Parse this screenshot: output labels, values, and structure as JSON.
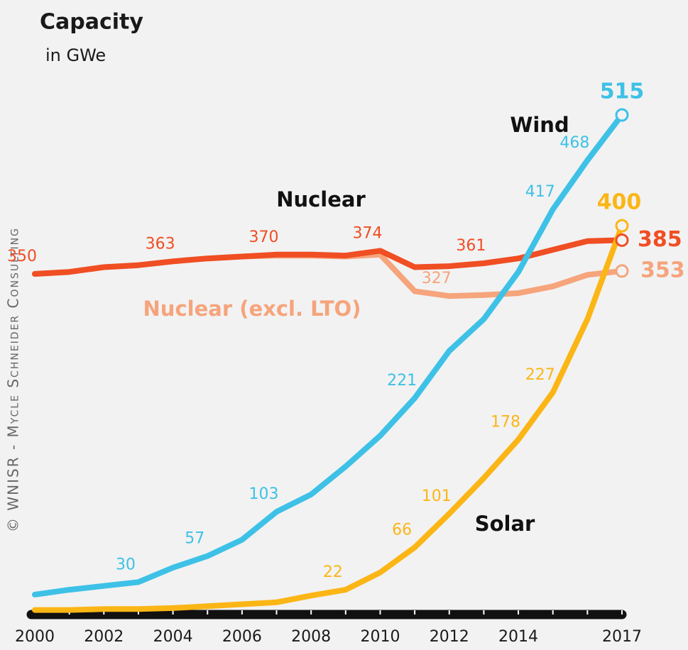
{
  "chart_data": {
    "type": "line",
    "title": "Capacity",
    "subtitle": "in GWe",
    "credit": "© WNISR - Mycle Schneider Consulting",
    "x": [
      2000,
      2001,
      2002,
      2003,
      2004,
      2005,
      2006,
      2007,
      2008,
      2009,
      2010,
      2011,
      2012,
      2013,
      2014,
      2015,
      2016,
      2017
    ],
    "xlim": [
      2000,
      2017
    ],
    "xticks": [
      2000,
      2002,
      2004,
      2006,
      2008,
      2010,
      2012,
      2014,
      2017
    ],
    "ylim": [
      0,
      515
    ],
    "grid": false,
    "series": [
      {
        "name": "Wind",
        "color": "#3ec1e6",
        "values": [
          17,
          22,
          26,
          30,
          45,
          57,
          74,
          103,
          121,
          150,
          182,
          221,
          270,
          303,
          352,
          417,
          468,
          515
        ],
        "value_labels": [
          null,
          null,
          null,
          "30",
          null,
          "57",
          null,
          "103",
          null,
          null,
          null,
          "221",
          null,
          null,
          null,
          "417",
          "468",
          "515"
        ]
      },
      {
        "name": "Nuclear",
        "color": "#f04e23",
        "values": [
          350,
          352,
          357,
          359,
          363,
          366,
          368,
          370,
          370,
          369,
          374,
          357,
          358,
          361,
          366,
          375,
          384,
          385
        ],
        "value_labels": [
          "350",
          null,
          null,
          null,
          "363",
          null,
          null,
          "370",
          null,
          null,
          "374",
          null,
          null,
          "361",
          null,
          null,
          null,
          "385"
        ]
      },
      {
        "name": "Nuclear (excl. LTO)",
        "color": "#f6a47c",
        "values": [
          350,
          352,
          357,
          359,
          363,
          366,
          368,
          369,
          369,
          368,
          370,
          332,
          327,
          328,
          330,
          337,
          349,
          353
        ],
        "value_labels": [
          null,
          null,
          null,
          null,
          null,
          null,
          null,
          null,
          null,
          null,
          null,
          null,
          "327",
          null,
          null,
          null,
          null,
          "353"
        ]
      },
      {
        "name": "Solar",
        "color": "#fbb616",
        "values": [
          1,
          1,
          2,
          2,
          3,
          5,
          7,
          9,
          16,
          22,
          40,
          66,
          101,
          138,
          178,
          227,
          303,
          400
        ],
        "value_labels": [
          null,
          null,
          null,
          null,
          null,
          null,
          null,
          null,
          null,
          "22",
          null,
          "66",
          "101",
          null,
          "178",
          "227",
          null,
          "400"
        ]
      }
    ]
  }
}
